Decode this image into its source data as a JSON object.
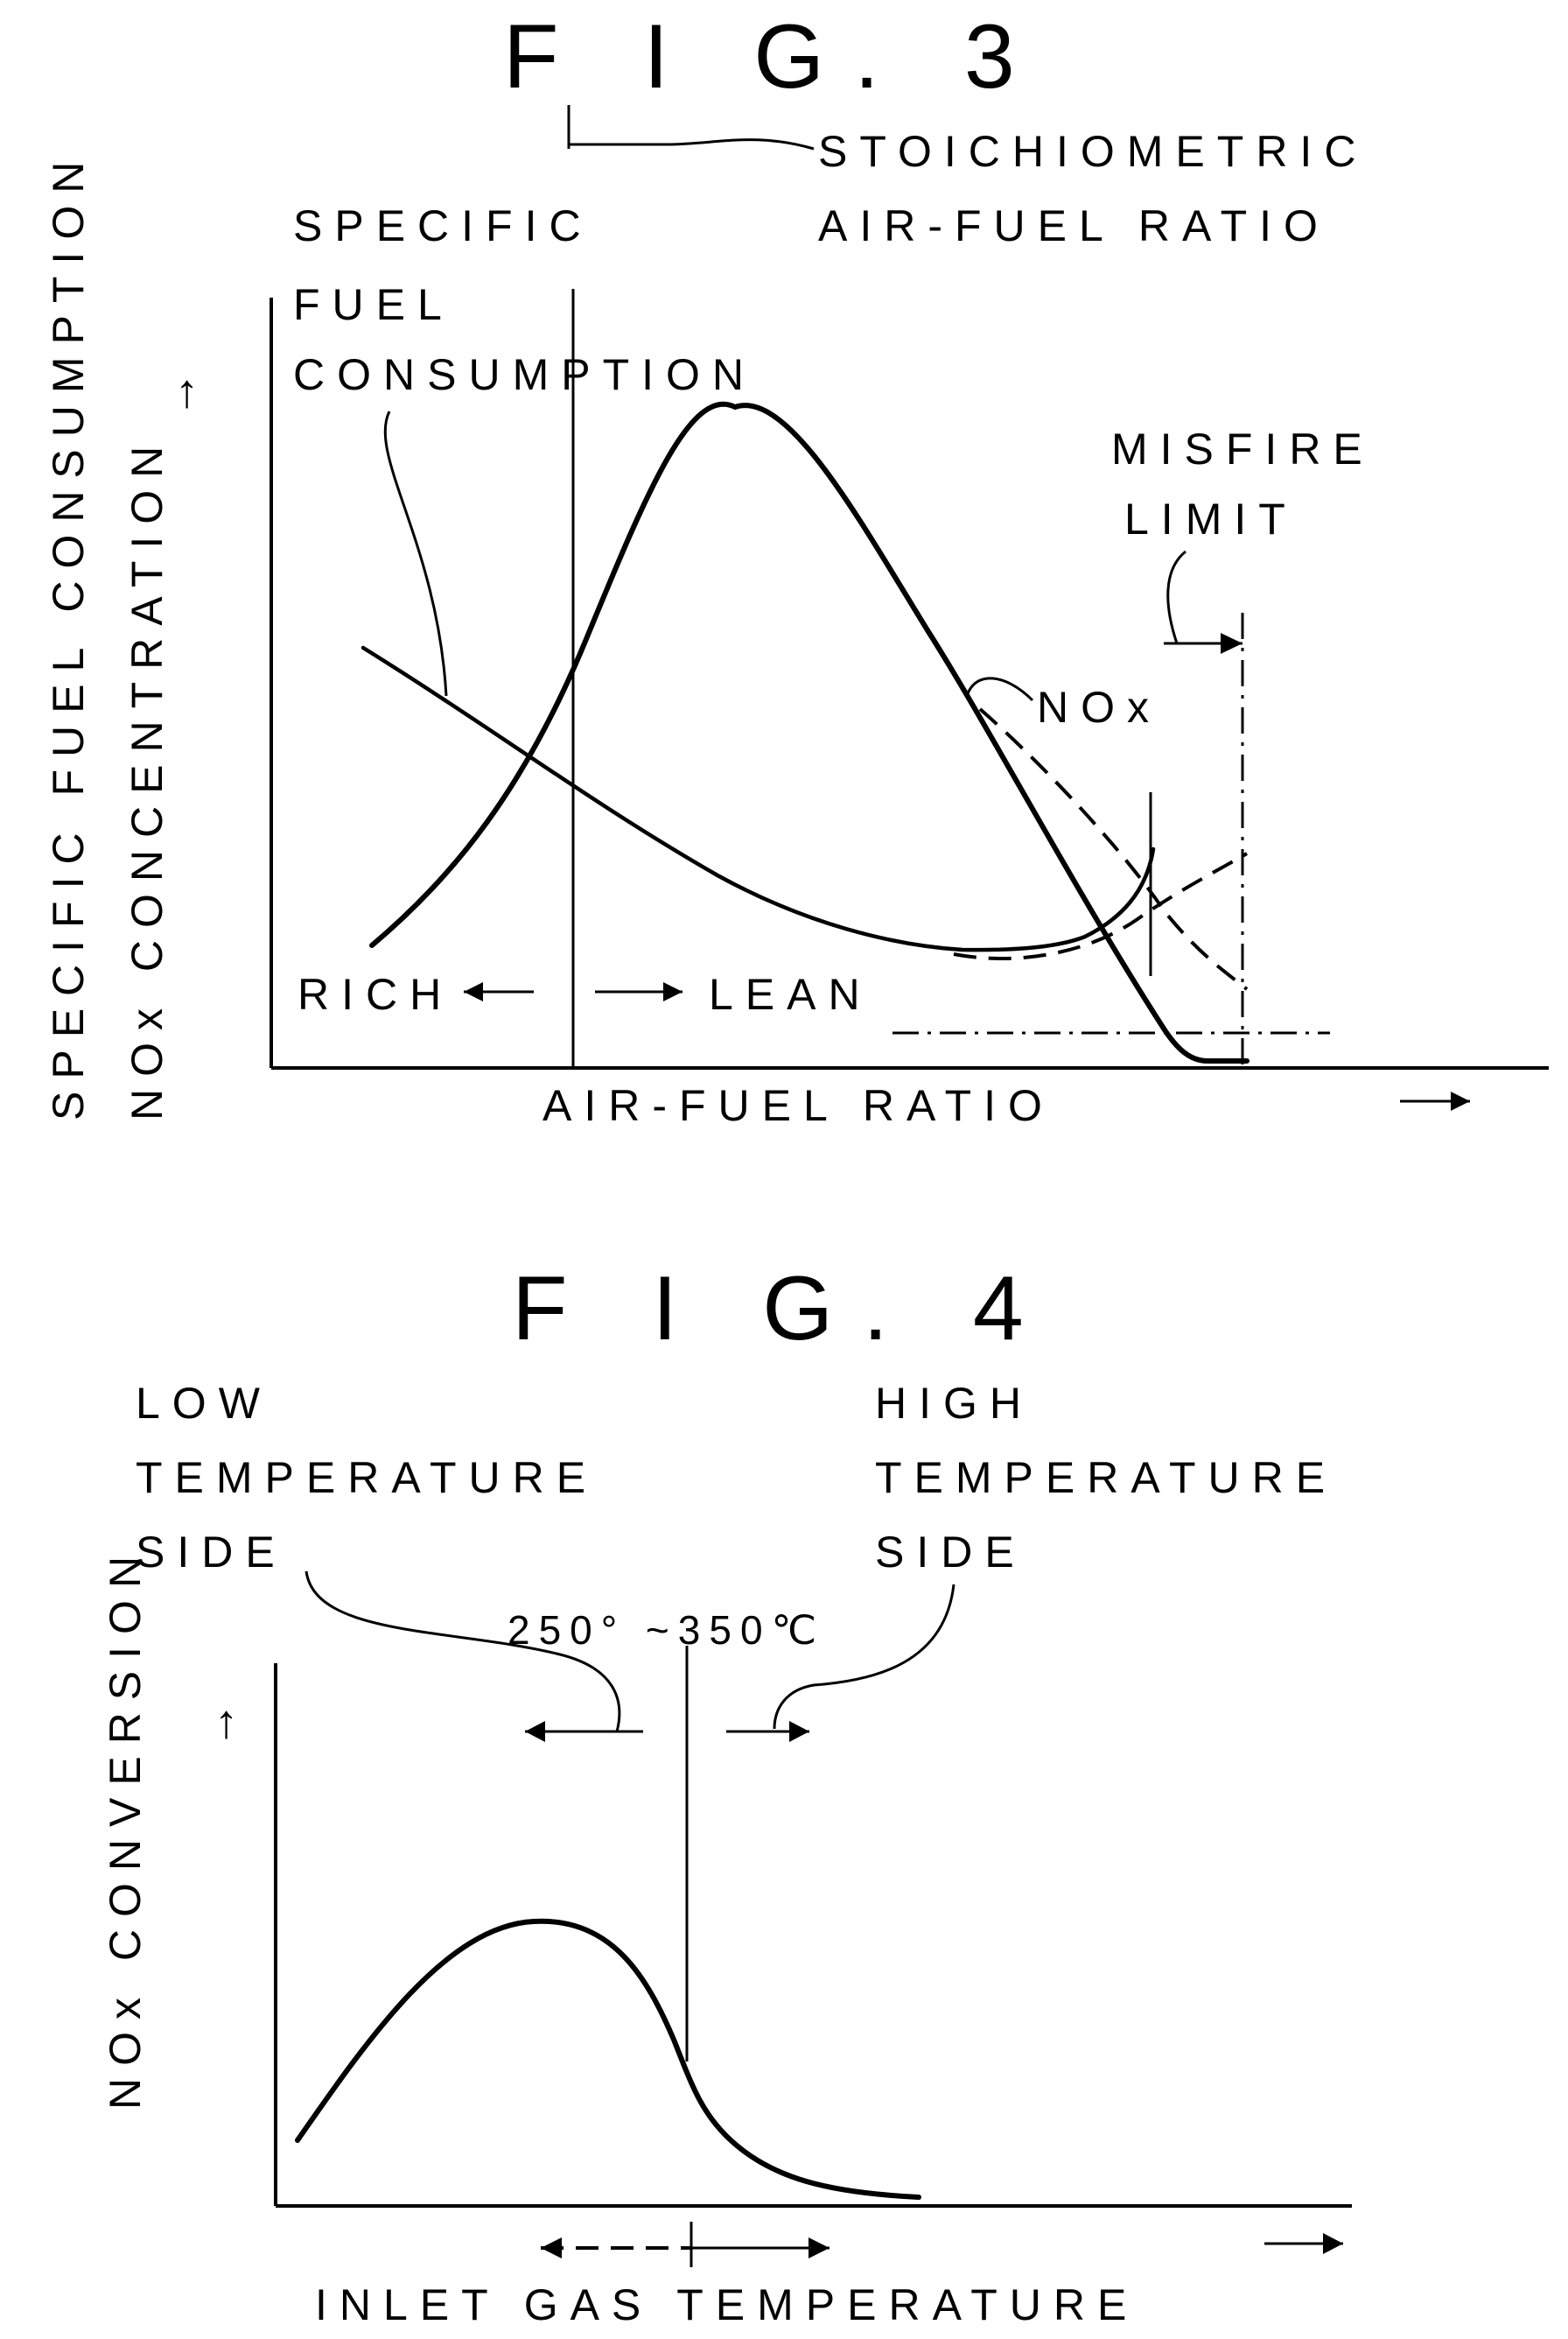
{
  "fig3": {
    "title": "F I G. 3",
    "stoich_line1": "STOICHIOMETRIC",
    "stoich_line2": "AIR-FUEL RATIO",
    "sfc_line1": "SPECIFIC",
    "sfc_line2": "FUEL",
    "sfc_line3": "CONSUMPTION",
    "y_label_line1": "SPECIFIC FUEL CONSUMPTION",
    "y_label_line2": "NOx CONCENTRATION",
    "misfire_line1": "MISFIRE",
    "misfire_line2": "LIMIT",
    "nox_label": "NOx",
    "rich": "RICH",
    "lean": "LEAN",
    "x_label": "AIR-FUEL RATIO"
  },
  "fig4": {
    "title": "F I G. 4",
    "low_line1": "LOW",
    "low_line2": "TEMPERATURE",
    "low_line3": "SIDE",
    "high_line1": "HIGH",
    "high_line2": "TEMPERATURE",
    "high_line3": "SIDE",
    "temp_range": "250° ~350℃",
    "y_label": "NOx CONVERSION",
    "x_label": "INLET GAS TEMPERATURE"
  }
}
